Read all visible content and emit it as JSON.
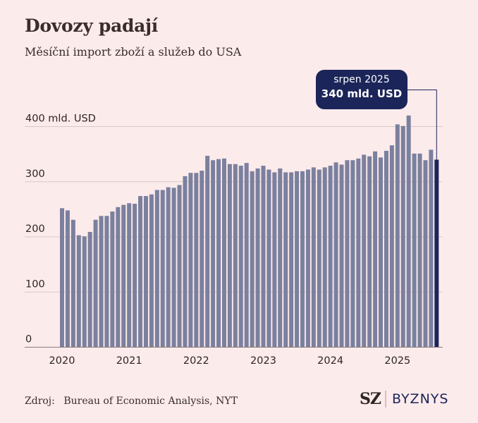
{
  "header": {
    "title": "Dovozy padají",
    "subtitle": "Měsíční import zboží a služeb do USA"
  },
  "callout": {
    "line1": "srpen 2025",
    "line2": "340 mld. USD"
  },
  "footer": {
    "source_label": "Zdroj:",
    "source_text": "Bureau of Economic Analysis, NYT",
    "logo_mark": "SZ",
    "logo_text": "BYZNYS"
  },
  "colors": {
    "background": "#fcebeb",
    "bar": "#7b809e",
    "highlight_bar": "#1b2559",
    "grid": "#d9c9c9"
  },
  "chart_data": {
    "type": "bar",
    "title": "Dovozy padají",
    "subtitle": "Měsíční import zboží a služeb do USA",
    "xlabel": "",
    "ylabel": "mld. USD",
    "ylim": [
      0,
      400
    ],
    "grid": true,
    "y_ticks": [
      {
        "value": 0,
        "label": "0"
      },
      {
        "value": 100,
        "label": "100"
      },
      {
        "value": 200,
        "label": "200"
      },
      {
        "value": 300,
        "label": "300"
      },
      {
        "value": 400,
        "label": "400 mld. USD"
      }
    ],
    "x_ticks": [
      {
        "index": 0,
        "label": "2020"
      },
      {
        "index": 12,
        "label": "2021"
      },
      {
        "index": 24,
        "label": "2022"
      },
      {
        "index": 36,
        "label": "2023"
      },
      {
        "index": 48,
        "label": "2024"
      },
      {
        "index": 60,
        "label": "2025"
      }
    ],
    "categories": [
      "2020-01",
      "2020-02",
      "2020-03",
      "2020-04",
      "2020-05",
      "2020-06",
      "2020-07",
      "2020-08",
      "2020-09",
      "2020-10",
      "2020-11",
      "2020-12",
      "2021-01",
      "2021-02",
      "2021-03",
      "2021-04",
      "2021-05",
      "2021-06",
      "2021-07",
      "2021-08",
      "2021-09",
      "2021-10",
      "2021-11",
      "2021-12",
      "2022-01",
      "2022-02",
      "2022-03",
      "2022-04",
      "2022-05",
      "2022-06",
      "2022-07",
      "2022-08",
      "2022-09",
      "2022-10",
      "2022-11",
      "2022-12",
      "2023-01",
      "2023-02",
      "2023-03",
      "2023-04",
      "2023-05",
      "2023-06",
      "2023-07",
      "2023-08",
      "2023-09",
      "2023-10",
      "2023-11",
      "2023-12",
      "2024-01",
      "2024-02",
      "2024-03",
      "2024-04",
      "2024-05",
      "2024-06",
      "2024-07",
      "2024-08",
      "2024-09",
      "2024-10",
      "2024-11",
      "2024-12",
      "2025-01",
      "2025-02",
      "2025-03",
      "2025-04",
      "2025-05",
      "2025-06",
      "2025-07",
      "2025-08"
    ],
    "values": [
      252,
      248,
      231,
      203,
      201,
      209,
      231,
      238,
      238,
      246,
      254,
      258,
      261,
      260,
      274,
      274,
      277,
      285,
      285,
      290,
      289,
      294,
      310,
      316,
      316,
      320,
      347,
      339,
      341,
      342,
      332,
      332,
      329,
      334,
      319,
      324,
      329,
      322,
      317,
      324,
      317,
      317,
      319,
      319,
      322,
      326,
      322,
      326,
      329,
      335,
      331,
      339,
      339,
      342,
      349,
      346,
      355,
      344,
      356,
      366,
      404,
      401,
      420,
      351,
      351,
      339,
      358,
      340
    ],
    "highlight_index": 67,
    "annotation": {
      "index": 67,
      "text": [
        "srpen 2025",
        "340 mld. USD"
      ]
    }
  }
}
